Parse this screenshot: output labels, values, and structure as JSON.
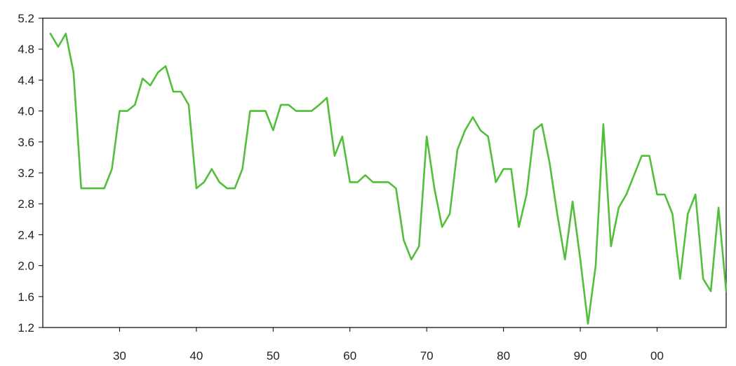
{
  "chart_data": {
    "type": "line",
    "title": "",
    "xlabel": "",
    "ylabel": "",
    "xlim": [
      1920,
      2009
    ],
    "ylim": [
      1.2,
      5.2
    ],
    "grid": false,
    "legend": "none",
    "y_ticks": [
      {
        "value": 1.2,
        "label": "1.2"
      },
      {
        "value": 1.6,
        "label": "1.6"
      },
      {
        "value": 2.0,
        "label": "2.0"
      },
      {
        "value": 2.4,
        "label": "2.4"
      },
      {
        "value": 2.8,
        "label": "2.8"
      },
      {
        "value": 3.2,
        "label": "3.2"
      },
      {
        "value": 3.6,
        "label": "3.6"
      },
      {
        "value": 4.0,
        "label": "4.0"
      },
      {
        "value": 4.4,
        "label": "4.4"
      },
      {
        "value": 4.8,
        "label": "4.8"
      },
      {
        "value": 5.2,
        "label": "5.2"
      }
    ],
    "x_ticks": [
      {
        "value": 1930,
        "label": "30"
      },
      {
        "value": 1940,
        "label": "40"
      },
      {
        "value": 1950,
        "label": "50"
      },
      {
        "value": 1960,
        "label": "60"
      },
      {
        "value": 1970,
        "label": "70"
      },
      {
        "value": 1980,
        "label": "80"
      },
      {
        "value": 1990,
        "label": "90"
      },
      {
        "value": 2000,
        "label": "00"
      }
    ],
    "series": [
      {
        "color": "#52bf3b",
        "x": [
          1921,
          1922,
          1923,
          1924,
          1925,
          1926,
          1927,
          1928,
          1929,
          1930,
          1931,
          1932,
          1933,
          1934,
          1935,
          1936,
          1937,
          1938,
          1939,
          1940,
          1941,
          1942,
          1943,
          1944,
          1945,
          1946,
          1947,
          1948,
          1949,
          1950,
          1951,
          1952,
          1953,
          1954,
          1955,
          1956,
          1957,
          1958,
          1959,
          1960,
          1961,
          1962,
          1963,
          1964,
          1965,
          1966,
          1967,
          1968,
          1969,
          1970,
          1971,
          1972,
          1973,
          1974,
          1975,
          1976,
          1977,
          1978,
          1979,
          1980,
          1981,
          1982,
          1983,
          1984,
          1985,
          1986,
          1987,
          1988,
          1989,
          1990,
          1991,
          1992,
          1993,
          1994,
          1995,
          1996,
          1997,
          1998,
          1999,
          2000,
          2001,
          2002,
          2003,
          2004,
          2005,
          2006,
          2007,
          2008,
          2009
        ],
        "values": [
          5.0,
          4.83,
          5.0,
          4.5,
          3.0,
          3.0,
          3.0,
          3.0,
          3.25,
          4.0,
          4.0,
          4.08,
          4.42,
          4.33,
          4.5,
          4.58,
          4.25,
          4.25,
          4.08,
          3.0,
          3.08,
          3.25,
          3.08,
          3.0,
          3.0,
          3.25,
          4.0,
          4.0,
          4.0,
          3.75,
          4.08,
          4.08,
          4.0,
          4.0,
          4.0,
          4.08,
          4.17,
          3.42,
          3.67,
          3.08,
          3.08,
          3.17,
          3.08,
          3.08,
          3.08,
          3.0,
          2.33,
          2.08,
          2.25,
          3.67,
          3.0,
          2.5,
          2.67,
          3.5,
          3.75,
          3.92,
          3.75,
          3.67,
          3.08,
          3.25,
          3.25,
          2.5,
          2.92,
          3.75,
          3.83,
          3.33,
          2.67,
          2.08,
          2.83,
          2.08,
          1.25,
          2.0,
          3.83,
          2.25,
          2.75,
          2.92,
          3.17,
          3.42,
          3.42,
          2.92,
          2.92,
          2.67,
          1.83,
          2.67,
          2.92,
          1.83,
          1.67,
          2.75,
          1.67
        ]
      }
    ]
  }
}
